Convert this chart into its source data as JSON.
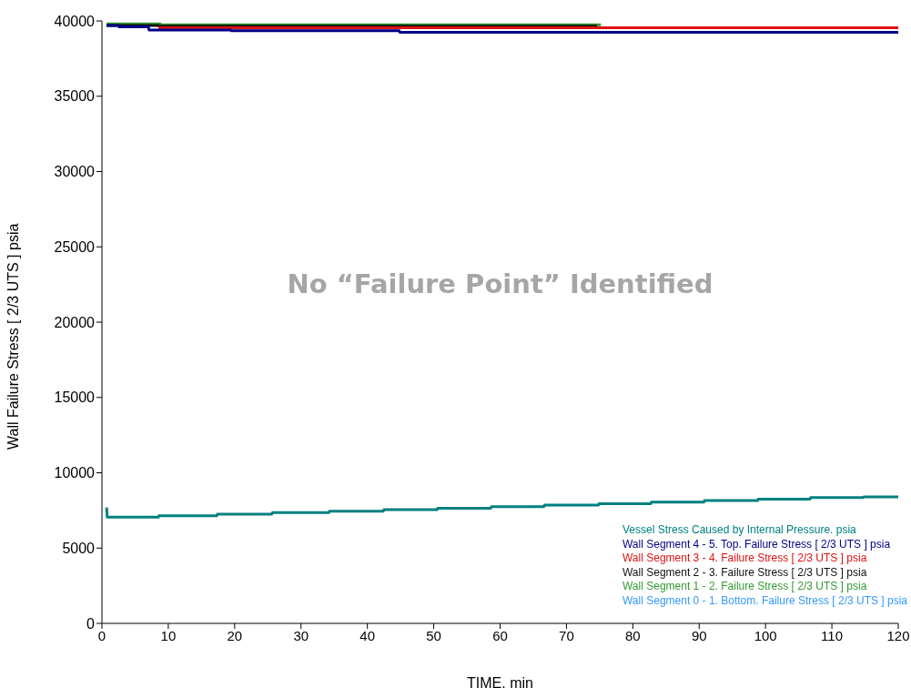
{
  "chart_data": {
    "type": "line",
    "xlabel": "TIME. min",
    "ylabel": "Wall Failure Stress [ 2/3 UTS ] psia",
    "xlim": [
      0,
      120
    ],
    "xticks": [
      0,
      10,
      20,
      30,
      40,
      50,
      60,
      70,
      80,
      90,
      100,
      110,
      120
    ],
    "ylim": [
      0,
      40000
    ],
    "yticks": [
      0,
      5000,
      10000,
      15000,
      20000,
      25000,
      30000,
      35000,
      40000
    ],
    "legend": "bottom right",
    "marker": "none",
    "line_style": "solid",
    "annotations": [
      "No “Failure Point” Identified"
    ],
    "series": [
      {
        "name": "Vessel Stress Caused by Internal Pressure. psia",
        "color": "#008080",
        "x": [
          0.7,
          0.8,
          8.5,
          8.6,
          17.3,
          17.4,
          25.6,
          25.7,
          34.2,
          34.3,
          42.4,
          42.5,
          50.5,
          50.6,
          58.6,
          58.7,
          66.6,
          66.7,
          74.8,
          74.9,
          82.7,
          82.8,
          90.7,
          90.8,
          98.8,
          98.9,
          106.7,
          106.8,
          114.7,
          114.8,
          120
        ],
        "values": [
          7700,
          7050,
          7050,
          7150,
          7150,
          7250,
          7250,
          7350,
          7350,
          7450,
          7450,
          7550,
          7550,
          7650,
          7650,
          7750,
          7750,
          7850,
          7850,
          7950,
          7950,
          8050,
          8050,
          8150,
          8150,
          8250,
          8250,
          8350,
          8350,
          8400,
          8400
        ]
      },
      {
        "name": "Wall Segment 0 - 1. Bottom. Failure Stress [ 2/3 UTS ] psia",
        "color": "#3399ff",
        "values": [
          null,
          null,
          null,
          null,
          null,
          null,
          null,
          null,
          null,
          null,
          null,
          null,
          null,
          null,
          null,
          null,
          null,
          null,
          null,
          null,
          null,
          null,
          null,
          null,
          null,
          null,
          null,
          null,
          null,
          null,
          null
        ]
      },
      {
        "name": "Wall Segment 1 - 2. Failure Stress [ 2/3 UTS ] psia",
        "color": "#339933",
        "x": [
          0.7,
          8.8,
          8.9,
          75.2
        ],
        "values": [
          39800,
          39800,
          39750,
          39750
        ]
      },
      {
        "name": "Wall Segment 2 - 3. Failure Stress [ 2/3 UTS ] psia",
        "color": "#111111",
        "x": [
          0.7,
          8.5,
          8.6,
          74.6
        ],
        "values": [
          39700,
          39700,
          39650,
          39650
        ]
      },
      {
        "name": "Wall Segment 3 - 4. Failure Stress [ 2/3 UTS ] psia",
        "color": "#dd1111",
        "x": [
          8.5,
          120
        ],
        "values": [
          39550,
          39550
        ]
      },
      {
        "name": "Wall Segment 4 - 5. Top. Failure Stress [ 2/3 UTS ] psia",
        "color": "#000088",
        "x": [
          0.7,
          2.5,
          2.6,
          7.0,
          7.1,
          19.4,
          19.5,
          44.8,
          44.9,
          120
        ],
        "values": [
          39700,
          39700,
          39600,
          39600,
          39400,
          39400,
          39350,
          39350,
          39250,
          39250
        ]
      }
    ]
  }
}
